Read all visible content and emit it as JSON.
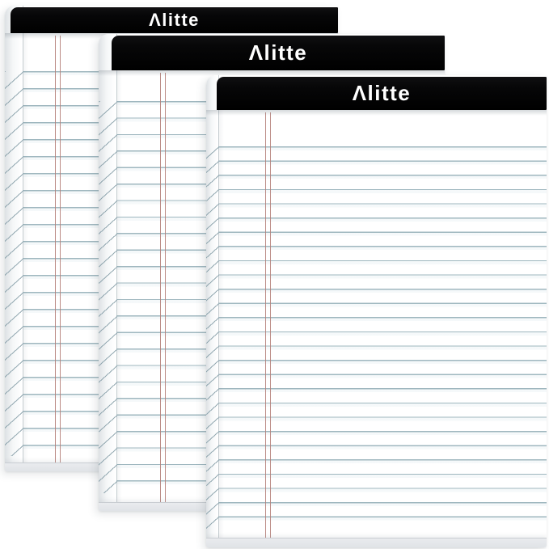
{
  "brand": {
    "name": "Alitte",
    "logo_text": "Λlitte"
  },
  "pads": [
    {
      "position": "back",
      "logo": "Λlitte"
    },
    {
      "position": "middle",
      "logo": "Λlitte"
    },
    {
      "position": "front",
      "logo": "Λlitte"
    }
  ],
  "colors": {
    "header_band": "#070708",
    "logo_text": "#ffffff",
    "rule_line": "#9fb7bf",
    "margin_line": "#b5817b",
    "paper": "#ffffff",
    "backing": "#e4e6ea",
    "background": "#ffffff"
  }
}
